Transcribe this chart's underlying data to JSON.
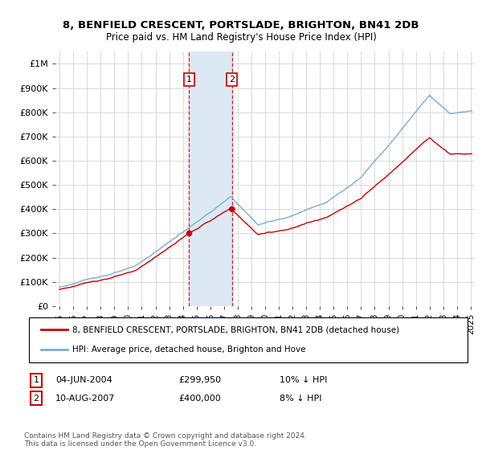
{
  "title": "8, BENFIELD CRESCENT, PORTSLADE, BRIGHTON, BN41 2DB",
  "subtitle": "Price paid vs. HM Land Registry's House Price Index (HPI)",
  "legend_line1": "8, BENFIELD CRESCENT, PORTSLADE, BRIGHTON, BN41 2DB (detached house)",
  "legend_line2": "HPI: Average price, detached house, Brighton and Hove",
  "annotation1_date": "04-JUN-2004",
  "annotation1_price": "£299,950",
  "annotation1_hpi": "10% ↓ HPI",
  "annotation2_date": "10-AUG-2007",
  "annotation2_price": "£400,000",
  "annotation2_hpi": "8% ↓ HPI",
  "footnote": "Contains HM Land Registry data © Crown copyright and database right 2024.\nThis data is licensed under the Open Government Licence v3.0.",
  "red_color": "#cc0000",
  "blue_color": "#7aadd4",
  "span_color": "#dce9f5",
  "background_color": "#ffffff",
  "grid_color": "#cccccc",
  "ylim": [
    0,
    1050000
  ],
  "yticks": [
    0,
    100000,
    200000,
    300000,
    400000,
    500000,
    600000,
    700000,
    800000,
    900000,
    1000000
  ],
  "ytick_labels": [
    "£0",
    "£100K",
    "£200K",
    "£300K",
    "£400K",
    "£500K",
    "£600K",
    "£700K",
    "£800K",
    "£900K",
    "£1M"
  ],
  "sale1_year": 2004.458,
  "sale1_price": 299950,
  "sale2_year": 2007.583,
  "sale2_price": 400000,
  "xlim_left": 1994.7,
  "xlim_right": 2025.3
}
